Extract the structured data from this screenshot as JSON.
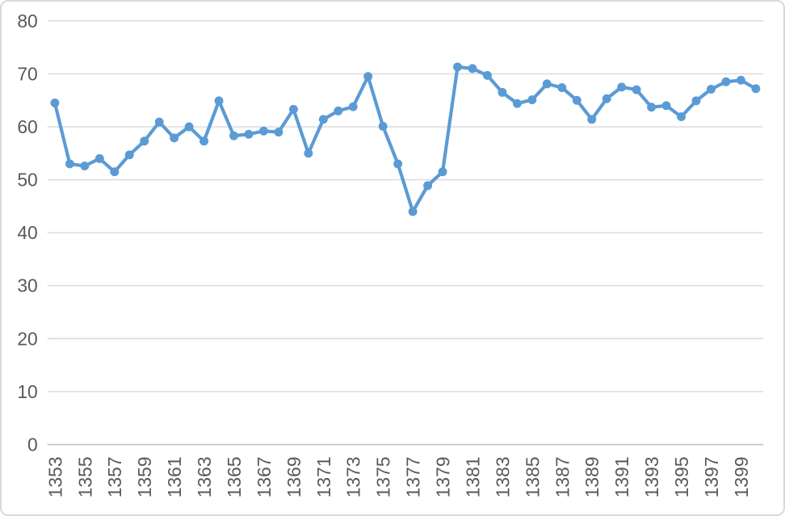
{
  "chart_data": {
    "type": "line",
    "title": "",
    "xlabel": "",
    "ylabel": "",
    "x": [
      1353,
      1354,
      1355,
      1356,
      1357,
      1358,
      1359,
      1360,
      1361,
      1362,
      1363,
      1364,
      1365,
      1366,
      1367,
      1368,
      1369,
      1370,
      1371,
      1372,
      1373,
      1374,
      1375,
      1376,
      1377,
      1378,
      1379,
      1380,
      1381,
      1382,
      1383,
      1384,
      1385,
      1386,
      1387,
      1388,
      1389,
      1390,
      1391,
      1392,
      1393,
      1394,
      1395,
      1396,
      1397,
      1398,
      1399,
      1400
    ],
    "series": [
      {
        "name": "series-1",
        "values": [
          64.5,
          53.0,
          52.6,
          54.0,
          51.5,
          54.7,
          57.3,
          60.9,
          57.9,
          60.0,
          57.3,
          64.9,
          58.3,
          58.6,
          59.2,
          59.0,
          63.3,
          55.0,
          61.4,
          63.0,
          63.8,
          69.5,
          60.1,
          53.0,
          44.0,
          48.9,
          51.5,
          71.3,
          71.0,
          69.7,
          66.5,
          64.4,
          65.1,
          68.1,
          67.4,
          65.0,
          61.4,
          65.3,
          67.5,
          67.0,
          63.7,
          64.0,
          61.9,
          64.9,
          67.1,
          68.5,
          68.8,
          67.2
        ]
      }
    ],
    "ylim": [
      0,
      80
    ],
    "yticks": [
      0,
      10,
      20,
      30,
      40,
      50,
      60,
      70,
      80
    ],
    "xticks": [
      1353,
      1355,
      1357,
      1359,
      1361,
      1363,
      1365,
      1367,
      1369,
      1371,
      1373,
      1375,
      1377,
      1379,
      1381,
      1383,
      1385,
      1387,
      1389,
      1391,
      1393,
      1395,
      1397,
      1399
    ],
    "grid": true,
    "legend": false,
    "marker": "circle",
    "colors": {
      "line": "#5B9BD5",
      "marker": "#5B9BD5",
      "gridline": "#D9D9D9",
      "axis_line": "#BFBFBF",
      "tick_label": "#595959",
      "background": "#FFFFFF",
      "border": "#D9D9D9"
    }
  }
}
